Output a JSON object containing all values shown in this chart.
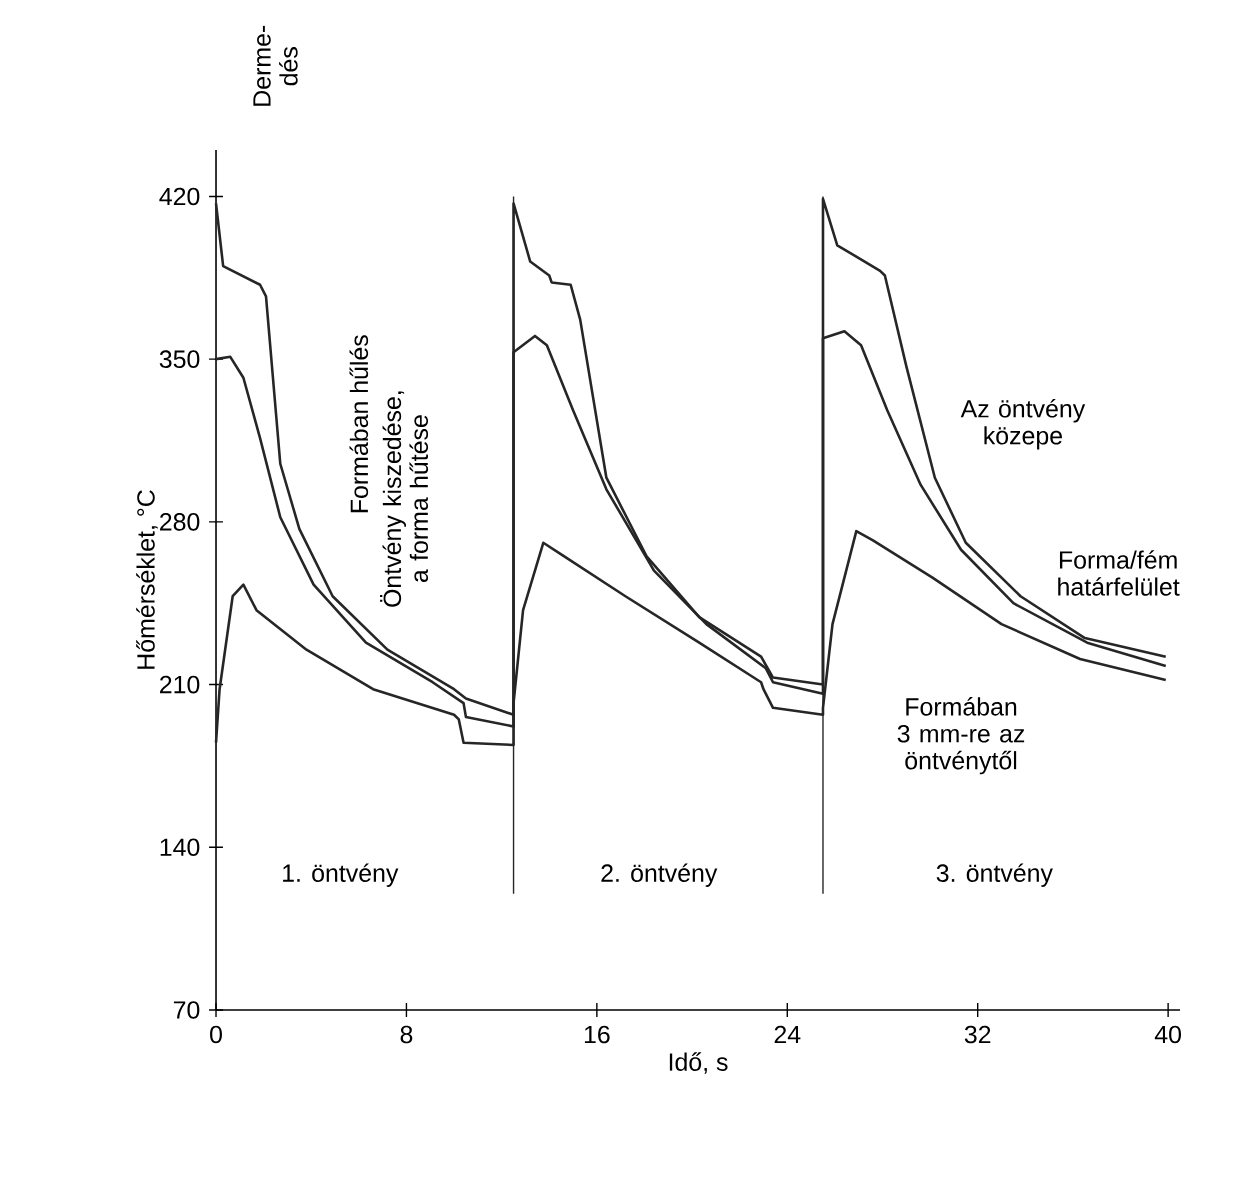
{
  "chart_data": {
    "type": "line",
    "xlabel": "Idő, s",
    "ylabel": "Hőmérséklet, °C",
    "xlim": [
      0,
      40.5
    ],
    "ylim": [
      70,
      440
    ],
    "xticks": [
      0,
      8,
      16,
      24,
      32,
      40
    ],
    "yticks": [
      70,
      140,
      210,
      280,
      350,
      420
    ],
    "series": [
      {
        "name": "Az öntvény közepe",
        "color": "#262626",
        "x": [
          0,
          0.3,
          1.85,
          2.1,
          2.7,
          3.5,
          4.9,
          7.2,
          10,
          10.5,
          12.5,
          12.5,
          13.2,
          14,
          14.1,
          14.9,
          15.3,
          16.4,
          18.1,
          20.3,
          22.9,
          23.4,
          25.5,
          25.5,
          26.1,
          27.9,
          28.1,
          29,
          30.2,
          31.5,
          33.8,
          36.5,
          39.9
        ],
        "values": [
          417,
          390,
          382,
          377,
          305,
          277,
          248,
          225,
          208,
          204,
          197,
          417,
          392,
          386,
          383,
          382,
          367,
          299,
          265,
          239,
          222,
          213,
          210,
          419,
          399,
          388,
          386,
          347,
          299,
          271,
          248,
          230,
          222
        ]
      },
      {
        "name": "Forma/fém határfelület",
        "color": "#262626",
        "x": [
          0,
          0.6,
          1.15,
          1.85,
          2.7,
          4.1,
          6.3,
          9.1,
          10.4,
          10.5,
          12.5,
          12.5,
          13.4,
          13.9,
          15,
          16.4,
          18.4,
          20.6,
          23.1,
          23.4,
          25.5,
          25.5,
          26.4,
          27.1,
          28.2,
          29.6,
          31.3,
          33.5,
          36.6,
          39.9
        ],
        "values": [
          350,
          351,
          342,
          316,
          282,
          253,
          228,
          211,
          202,
          196,
          192,
          353,
          360,
          356,
          328,
          294,
          259,
          236,
          217,
          211,
          206,
          359,
          362,
          356,
          328,
          296,
          268,
          245,
          228,
          218
        ]
      },
      {
        "name": "Formában 3 mm-re az öntvénytől",
        "color": "#262626",
        "x": [
          0,
          0.15,
          0.7,
          1.15,
          1.7,
          3.8,
          6.6,
          10,
          10.2,
          10.4,
          12.5,
          12.5,
          12.9,
          13.75,
          14.5,
          17.2,
          20.3,
          22.9,
          23,
          23.4,
          25.5,
          25.5,
          25.9,
          26.9,
          27.6,
          30.1,
          33,
          36.3,
          39.9
        ],
        "values": [
          185,
          208,
          248,
          253,
          242,
          225,
          208,
          197,
          195,
          185,
          184,
          202,
          242,
          271,
          266,
          248,
          228,
          211,
          208,
          200,
          197,
          200,
          236,
          276,
          272,
          256,
          236,
          221,
          212
        ]
      }
    ],
    "ref_lines": [
      {
        "axis": "x",
        "value": 12.5,
        "color": "#262626"
      },
      {
        "axis": "x",
        "value": 25.5,
        "color": "#262626"
      }
    ],
    "annotations": [
      "Derme- dés",
      "Formában hűlés",
      "Öntvény kiszedése, a forma hűtése",
      "1. öntvény",
      "2. öntvény",
      "3. öntvény"
    ],
    "marker": "none",
    "line_style": "solid",
    "grid": false,
    "legend": false
  }
}
